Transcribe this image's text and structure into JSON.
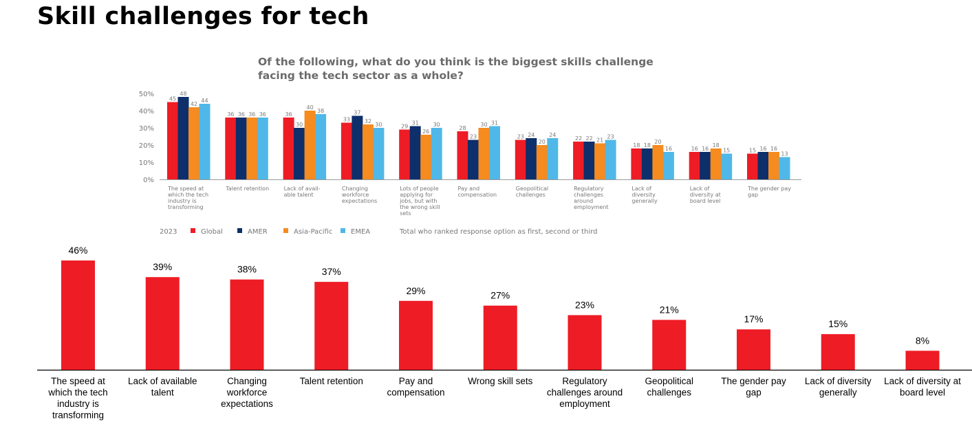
{
  "page": {
    "title": "Skill challenges for tech"
  },
  "chart_data": [
    {
      "type": "bar",
      "title_lines": [
        "Of the following, what do you think is the biggest skills challenge",
        "facing the tech sector as a whole?"
      ],
      "y_ticks": [
        "0%",
        "10%",
        "20%",
        "30%",
        "40%",
        "50%"
      ],
      "ylim": [
        0,
        50
      ],
      "categories": [
        [
          "The speed at",
          "which the tech",
          "industry is",
          "transforming"
        ],
        [
          "Talent retention"
        ],
        [
          "Lack of avail-",
          "able talent"
        ],
        [
          "Changing",
          "workforce",
          "expectations"
        ],
        [
          "Lots of people",
          "applying for",
          "jobs, but with",
          "the wrong skill",
          "sets"
        ],
        [
          "Pay and",
          "compensation"
        ],
        [
          "Geopolitical",
          "challenges"
        ],
        [
          "Regulatory",
          "challenges",
          "around",
          "employment"
        ],
        [
          "Lack of",
          "diversity",
          "generally"
        ],
        [
          "Lack of",
          "diversity at",
          "board level"
        ],
        [
          "The gender pay",
          "gap"
        ]
      ],
      "series": [
        {
          "name": "Global",
          "color": "#ee1c25",
          "values": [
            45,
            36,
            36,
            33,
            29,
            28,
            23,
            22,
            18,
            16,
            15
          ]
        },
        {
          "name": "AMER",
          "color": "#0d2f6b",
          "values": [
            48,
            36,
            30,
            37,
            31,
            23,
            24,
            22,
            18,
            16,
            16
          ]
        },
        {
          "name": "Asia-Pacific",
          "color": "#f68b1f",
          "values": [
            42,
            36,
            40,
            32,
            26,
            30,
            20,
            21,
            20,
            18,
            16
          ]
        },
        {
          "name": "EMEA",
          "color": "#4fb8e8",
          "values": [
            44,
            36,
            38,
            30,
            30,
            31,
            24,
            23,
            16,
            15,
            13
          ]
        }
      ],
      "legend_year": "2023",
      "legend_note": "Total who ranked response option as first, second or third"
    },
    {
      "type": "bar",
      "color": "#ee1c25",
      "ylim": [
        0,
        46
      ],
      "categories": [
        [
          "The speed at",
          "which the tech",
          "industry is",
          "transforming"
        ],
        [
          "Lack of available",
          "talent"
        ],
        [
          "Changing",
          "workforce",
          "expectations"
        ],
        [
          "Talent retention"
        ],
        [
          "Pay and",
          "compensation"
        ],
        [
          "Wrong skill sets"
        ],
        [
          "Regulatory",
          "challenges around",
          "employment"
        ],
        [
          "Geopolitical",
          "challenges"
        ],
        [
          "The gender pay",
          "gap"
        ],
        [
          "Lack of diversity",
          "generally"
        ],
        [
          "Lack of diversity at",
          "board level"
        ]
      ],
      "values": [
        46,
        39,
        38,
        37,
        29,
        27,
        23,
        21,
        17,
        15,
        8
      ],
      "value_labels": [
        "46%",
        "39%",
        "38%",
        "37%",
        "29%",
        "27%",
        "23%",
        "21%",
        "17%",
        "15%",
        "8%"
      ]
    }
  ]
}
